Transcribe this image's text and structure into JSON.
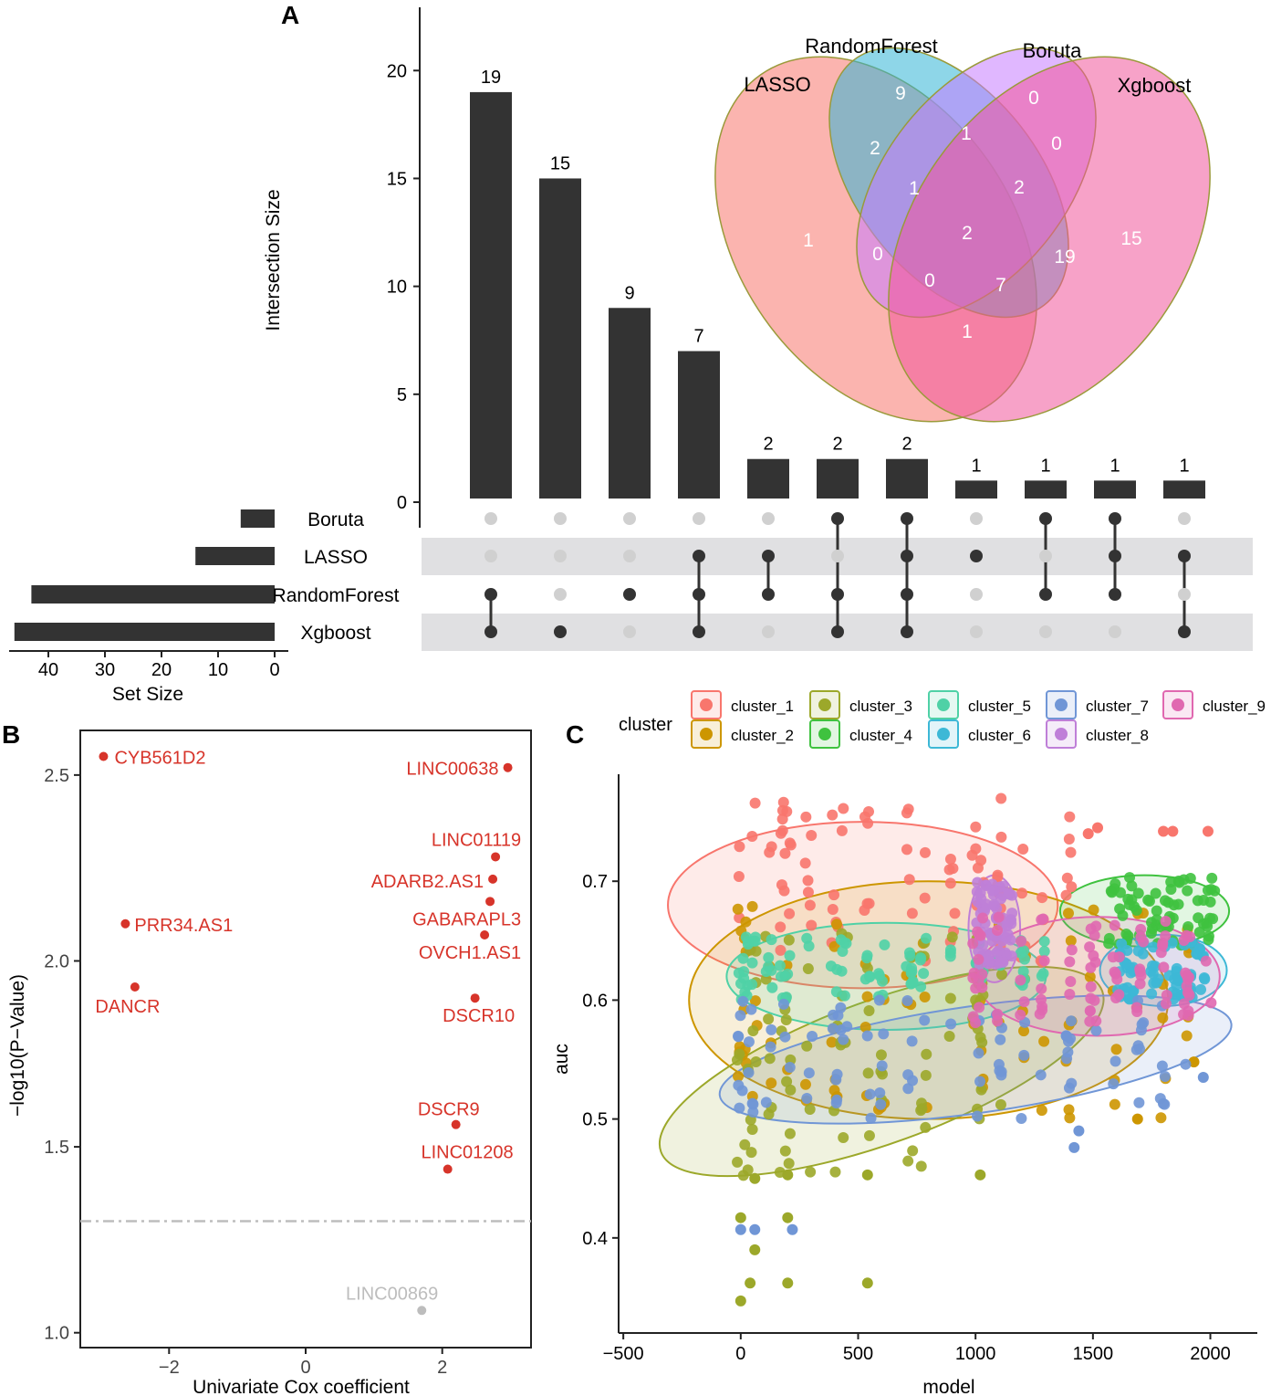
{
  "panels": {
    "a": "A",
    "b": "B",
    "c": "C"
  },
  "chart_data": [
    {
      "type": "bar",
      "panel": "A",
      "ylabel": "Intersection Size",
      "ylim": [
        0,
        22
      ],
      "yticks": [
        0,
        5,
        10,
        15,
        20
      ],
      "values": [
        19,
        15,
        9,
        7,
        2,
        2,
        2,
        1,
        1,
        1,
        1
      ],
      "sets": [
        "Boruta",
        "LASSO",
        "RandomForest",
        "Xgboost"
      ],
      "set_sizes": [
        6,
        14,
        43,
        46
      ],
      "set_size_label": "Set Size",
      "set_size_ticks": [
        40,
        30,
        20,
        10,
        0
      ],
      "set_size_xlim": [
        0,
        47
      ],
      "combinations": [
        [
          "RandomForest",
          "Xgboost"
        ],
        [
          "Xgboost"
        ],
        [
          "RandomForest"
        ],
        [
          "LASSO",
          "RandomForest",
          "Xgboost"
        ],
        [
          "LASSO",
          "RandomForest"
        ],
        [
          "Boruta",
          "RandomForest",
          "Xgboost"
        ],
        [
          "Boruta",
          "LASSO",
          "RandomForest",
          "Xgboost"
        ],
        [
          "LASSO"
        ],
        [
          "Boruta",
          "RandomForest"
        ],
        [
          "Boruta",
          "LASSO",
          "RandomForest"
        ],
        [
          "LASSO",
          "Xgboost"
        ]
      ],
      "venn": {
        "set_labels": [
          "LASSO",
          "RandomForest",
          "Boruta",
          "Xgboost"
        ],
        "set_colors": [
          "#F8766D",
          "#31B5D6",
          "#C77CFF",
          "#F0559A"
        ],
        "regions": [
          "1",
          "9",
          "0",
          "15",
          "2",
          "1",
          "0",
          "1",
          "0",
          "2",
          "19",
          "0",
          "1",
          "7",
          "2"
        ]
      }
    },
    {
      "type": "scatter",
      "panel": "B",
      "xlabel": "Univariate Cox coefficient",
      "ylabel": "−log10(P−Value)",
      "xlim": [
        -3.3,
        3.3
      ],
      "ylim": [
        0.96,
        2.62
      ],
      "xticks": [
        -2,
        0,
        2
      ],
      "xtick_labels": [
        "−2",
        "0",
        "2"
      ],
      "yticks": [
        1.0,
        1.5,
        2.0,
        2.5
      ],
      "ytick_labels": [
        "1.0",
        "1.5",
        "2.0",
        "2.5"
      ],
      "threshold": 1.3,
      "points": [
        {
          "label": "CYB561D2",
          "x": -2.96,
          "y": 2.55,
          "color": "#D7342A"
        },
        {
          "label": "LINC00638",
          "x": 2.96,
          "y": 2.52,
          "color": "#D7342A"
        },
        {
          "label": "LINC01119",
          "x": 2.78,
          "y": 2.28,
          "color": "#D7342A"
        },
        {
          "label": "ADARB2.AS1",
          "x": 2.74,
          "y": 2.22,
          "color": "#D7342A"
        },
        {
          "label": "PRR34.AS1",
          "x": -2.64,
          "y": 2.1,
          "color": "#D7342A"
        },
        {
          "label": "GABARAPL3",
          "x": 2.7,
          "y": 2.16,
          "color": "#D7342A"
        },
        {
          "label": "OVCH1.AS1",
          "x": 2.62,
          "y": 2.07,
          "color": "#D7342A"
        },
        {
          "label": "DANCR",
          "x": -2.5,
          "y": 1.93,
          "color": "#D7342A"
        },
        {
          "label": "DSCR10",
          "x": 2.48,
          "y": 1.9,
          "color": "#D7342A"
        },
        {
          "label": "DSCR9",
          "x": 2.2,
          "y": 1.56,
          "color": "#D7342A"
        },
        {
          "label": "LINC01208",
          "x": 2.08,
          "y": 1.44,
          "color": "#D7342A"
        },
        {
          "label": "LINC00869",
          "x": 1.7,
          "y": 1.06,
          "color": "#BDBDBD"
        }
      ]
    },
    {
      "type": "scatter",
      "panel": "C",
      "xlabel": "model",
      "ylabel": "auc",
      "xlim": [
        -520,
        2200
      ],
      "ylim": [
        0.32,
        0.79
      ],
      "xticks": [
        -500,
        0,
        500,
        1000,
        1500,
        2000
      ],
      "xtick_labels": [
        "−500",
        "0",
        "500",
        "1000",
        "1500",
        "2000"
      ],
      "yticks": [
        0.4,
        0.5,
        0.6,
        0.7
      ],
      "ytick_labels": [
        "0.4",
        "0.5",
        "0.6",
        "0.7"
      ],
      "legend_title": "cluster",
      "series": [
        {
          "name": "cluster_1",
          "color": "#F8766D",
          "x_range": [
            0,
            1400
          ],
          "auc_range": [
            0.63,
            0.77
          ],
          "extra": [
            [
              1480,
              0.74
            ],
            [
              1520,
              0.745
            ],
            [
              1800,
              0.742
            ],
            [
              1840,
              0.742
            ],
            [
              1990,
              0.742
            ]
          ],
          "ellipse": {
            "cx": 520,
            "cy": 0.68,
            "rx": 830,
            "ry": 0.07,
            "angle": 0
          }
        },
        {
          "name": "cluster_2",
          "color": "#CD9600",
          "x_range": [
            0,
            1900
          ],
          "auc_range": [
            0.5,
            0.68
          ],
          "extra": [
            [
              1690,
              0.5
            ],
            [
              1930,
              0.548
            ]
          ],
          "ellipse": {
            "cx": 800,
            "cy": 0.6,
            "rx": 1020,
            "ry": 0.1,
            "angle": 0
          }
        },
        {
          "name": "cluster_3",
          "color": "#9CA82A",
          "x_range": [
            0,
            1100
          ],
          "auc_range": [
            0.45,
            0.66
          ],
          "extra": [
            [
              0,
              0.347
            ],
            [
              0,
              0.417
            ],
            [
              40,
              0.362
            ],
            [
              60,
              0.39
            ],
            [
              200,
              0.362
            ],
            [
              200,
              0.417
            ],
            [
              540,
              0.362
            ],
            [
              60,
              0.45
            ],
            [
              200,
              0.453
            ],
            [
              540,
              0.453
            ],
            [
              1020,
              0.453
            ]
          ],
          "ellipse": {
            "cx": 600,
            "cy": 0.54,
            "rx": 1000,
            "ry": 0.06,
            "angle": 20
          }
        },
        {
          "name": "cluster_4",
          "color": "#3FC23F",
          "x_range": [
            1560,
            2020
          ],
          "auc_range": [
            0.645,
            0.705
          ],
          "extra": [],
          "ellipse": {
            "cx": 1720,
            "cy": 0.675,
            "rx": 360,
            "ry": 0.03,
            "angle": 0
          }
        },
        {
          "name": "cluster_5",
          "color": "#4FD1A6",
          "x_range": [
            0,
            1300
          ],
          "auc_range": [
            0.6,
            0.655
          ],
          "extra": [],
          "ellipse": {
            "cx": 620,
            "cy": 0.62,
            "rx": 680,
            "ry": 0.045,
            "angle": 0
          }
        },
        {
          "name": "cluster_6",
          "color": "#3DB8D6",
          "x_range": [
            1600,
            1980
          ],
          "auc_range": [
            0.6,
            0.65
          ],
          "extra": [],
          "ellipse": {
            "cx": 1800,
            "cy": 0.625,
            "rx": 270,
            "ry": 0.03,
            "angle": 0
          }
        },
        {
          "name": "cluster_7",
          "color": "#7096D6",
          "x_range": [
            0,
            1900
          ],
          "auc_range": [
            0.5,
            0.6
          ],
          "extra": [
            [
              0,
              0.407
            ],
            [
              60,
              0.407
            ],
            [
              220,
              0.407
            ],
            [
              1420,
              0.476
            ],
            [
              1440,
              0.49
            ],
            [
              1970,
              0.535
            ]
          ],
          "ellipse": {
            "cx": 1000,
            "cy": 0.55,
            "rx": 1100,
            "ry": 0.045,
            "angle": 8
          }
        },
        {
          "name": "cluster_8",
          "color": "#BF7FD8",
          "x_range": [
            1000,
            1160
          ],
          "auc_range": [
            0.63,
            0.7
          ],
          "extra": [],
          "ellipse": {
            "cx": 1080,
            "cy": 0.66,
            "rx": 110,
            "ry": 0.045,
            "angle": 0
          }
        },
        {
          "name": "cluster_9",
          "color": "#E068B0",
          "x_range": [
            1000,
            2000
          ],
          "auc_range": [
            0.58,
            0.67
          ],
          "extra": [],
          "ellipse": {
            "cx": 1520,
            "cy": 0.62,
            "rx": 520,
            "ry": 0.05,
            "angle": 0
          }
        }
      ]
    }
  ]
}
